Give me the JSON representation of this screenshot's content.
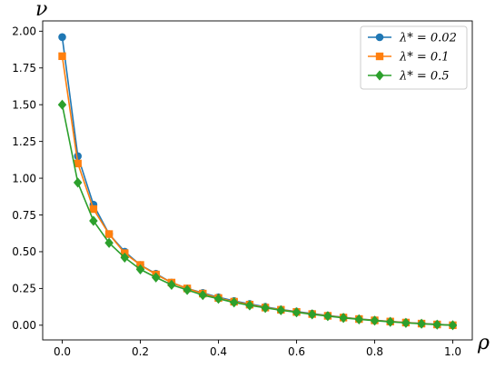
{
  "chart_data": {
    "type": "line",
    "xlabel": "ρ",
    "ylabel": "ν",
    "xlim": [
      -0.05,
      1.05
    ],
    "ylim": [
      -0.1,
      2.07
    ],
    "x_ticks": [
      0.0,
      0.2,
      0.4,
      0.6,
      0.8,
      1.0
    ],
    "x_tick_labels": [
      "0.0",
      "0.2",
      "0.4",
      "0.6",
      "0.8",
      "1.0"
    ],
    "y_ticks": [
      0.0,
      0.25,
      0.5,
      0.75,
      1.0,
      1.25,
      1.5,
      1.75,
      2.0
    ],
    "y_tick_labels": [
      "0.00",
      "0.25",
      "0.50",
      "0.75",
      "1.00",
      "1.25",
      "1.50",
      "1.75",
      "2.00"
    ],
    "grid": false,
    "legend_position": "top-right",
    "x": [
      0.0,
      0.04,
      0.08,
      0.12,
      0.16,
      0.2,
      0.24,
      0.28,
      0.32,
      0.36,
      0.4,
      0.44,
      0.48,
      0.52,
      0.56,
      0.6,
      0.64,
      0.68,
      0.72,
      0.76,
      0.8,
      0.84,
      0.88,
      0.92,
      0.96,
      1.0
    ],
    "series": [
      {
        "name": "λ* = 0.02",
        "color": "#1f77b4",
        "marker": "circle",
        "values": [
          1.96,
          1.15,
          0.82,
          0.62,
          0.5,
          0.41,
          0.35,
          0.29,
          0.25,
          0.22,
          0.19,
          0.165,
          0.145,
          0.125,
          0.107,
          0.093,
          0.079,
          0.066,
          0.054,
          0.043,
          0.034,
          0.026,
          0.019,
          0.012,
          0.006,
          0.0
        ]
      },
      {
        "name": "λ* = 0.1",
        "color": "#ff7f0e",
        "marker": "square",
        "values": [
          1.83,
          1.1,
          0.79,
          0.62,
          0.49,
          0.41,
          0.345,
          0.29,
          0.25,
          0.215,
          0.185,
          0.16,
          0.14,
          0.12,
          0.105,
          0.09,
          0.076,
          0.064,
          0.052,
          0.042,
          0.033,
          0.025,
          0.018,
          0.011,
          0.005,
          0.0
        ]
      },
      {
        "name": "λ* = 0.5",
        "color": "#2ca02c",
        "marker": "diamond",
        "values": [
          1.5,
          0.97,
          0.71,
          0.56,
          0.46,
          0.38,
          0.325,
          0.275,
          0.24,
          0.205,
          0.18,
          0.155,
          0.135,
          0.118,
          0.102,
          0.088,
          0.074,
          0.062,
          0.05,
          0.04,
          0.031,
          0.023,
          0.016,
          0.01,
          0.004,
          0.0
        ]
      }
    ]
  }
}
